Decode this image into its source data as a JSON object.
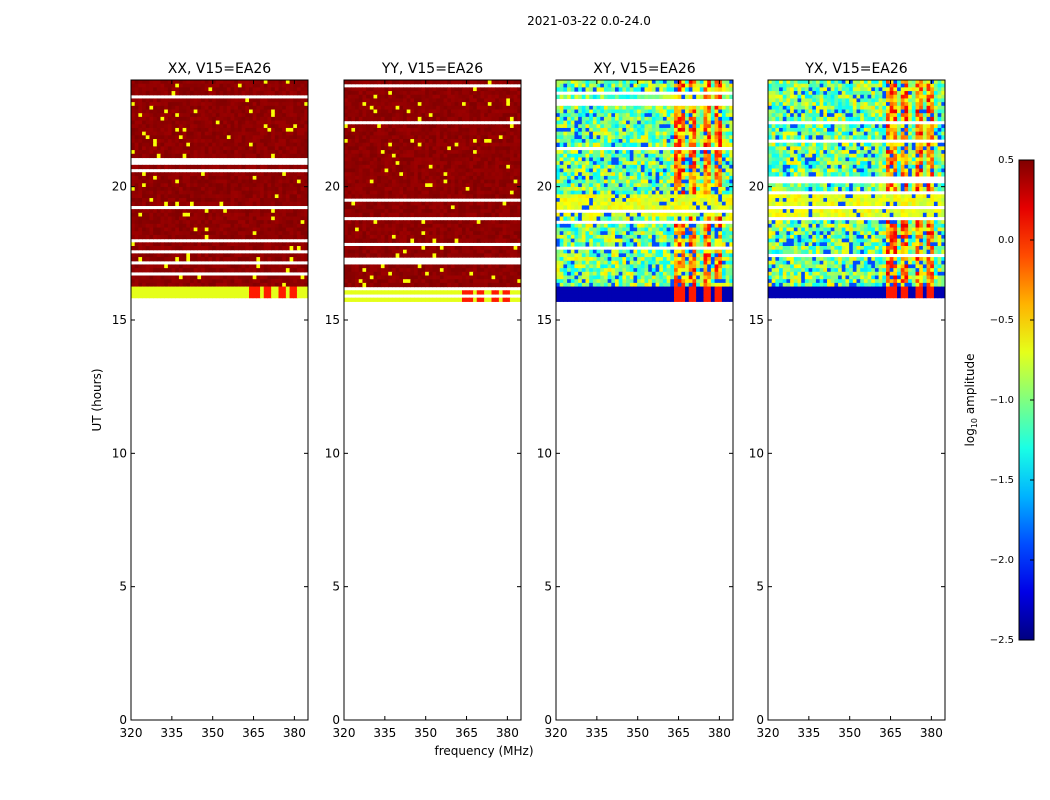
{
  "figure_title": "2021-03-22 0.0-24.0",
  "chart_data": {
    "type": "heatmap",
    "ylabel": "UT (hours)",
    "xlabel": "frequency (MHz)",
    "xlim": [
      320,
      385
    ],
    "ylim": [
      0,
      24
    ],
    "xticks": [
      320,
      335,
      350,
      365,
      380
    ],
    "yticks": [
      0,
      5,
      10,
      15,
      20
    ],
    "data_time_range": [
      15.7,
      24.0
    ],
    "panels": [
      {
        "title": "XX, V15=EA26",
        "kind": "parallel"
      },
      {
        "title": "YY, V15=EA26",
        "kind": "parallel"
      },
      {
        "title": "XY, V15=EA26",
        "kind": "cross"
      },
      {
        "title": "YX, V15=EA26",
        "kind": "cross"
      }
    ],
    "colorbar": {
      "label": "log10 amplitude",
      "label_main": "log",
      "label_sub": "10",
      "label_rest": " amplitude",
      "range": [
        -2.5,
        0.5
      ],
      "ticks": [
        -2.5,
        -2.0,
        -1.5,
        -1.0,
        -0.5,
        0.0,
        0.5
      ],
      "tick_labels": [
        "−2.5",
        "−2.0",
        "−1.5",
        "−1.0",
        "−0.5",
        "0.0",
        "0.5"
      ],
      "colormap": "jet"
    },
    "interference_bands_MHz": [
      [
        364,
        368
      ],
      [
        369,
        372
      ],
      [
        374,
        377
      ],
      [
        378,
        381
      ]
    ]
  }
}
